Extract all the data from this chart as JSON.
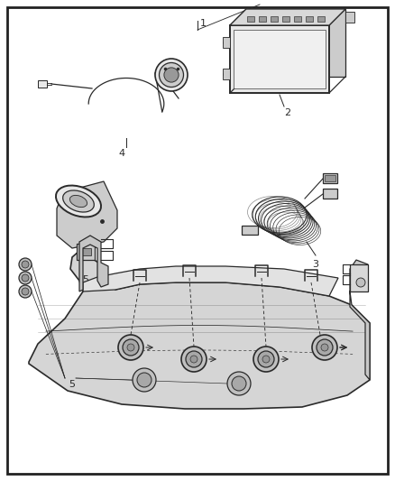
{
  "background_color": "#ffffff",
  "border_color": "#222222",
  "fig_width": 4.38,
  "fig_height": 5.33,
  "dpi": 100,
  "label_fontsize": 8,
  "line_color": "#2a2a2a",
  "line_width": 0.9,
  "gray_light": "#e8e8e8",
  "gray_mid": "#cccccc",
  "gray_dark": "#999999"
}
